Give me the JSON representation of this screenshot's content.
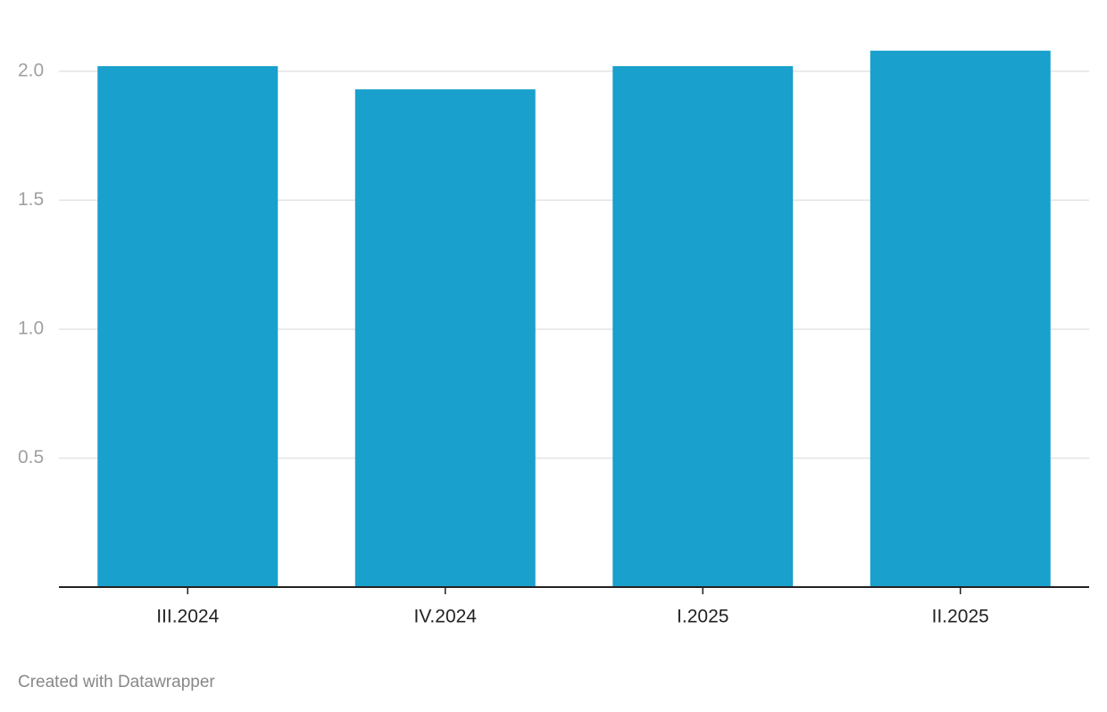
{
  "chart_data": {
    "type": "bar",
    "categories": [
      "III.2024",
      "IV.2024",
      "I.2025",
      "II.2025"
    ],
    "values": [
      2.02,
      1.93,
      2.02,
      2.08
    ],
    "color": "#19a0cc",
    "ylim": [
      0,
      2.1
    ],
    "yticks": [
      0.5,
      {
        "value": 1,
        "label": "1.0"
      },
      1.5,
      {
        "value": 2,
        "label": "2.0"
      }
    ],
    "grid": true,
    "footer": "Created with Datawrapper"
  }
}
